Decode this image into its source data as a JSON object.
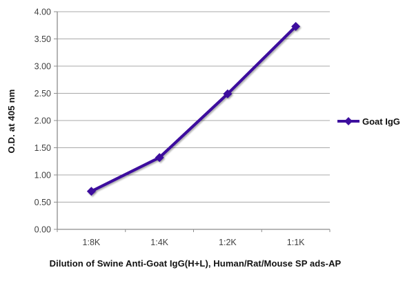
{
  "chart_data": {
    "type": "line",
    "categories": [
      "1:8K",
      "1:4K",
      "1:2K",
      "1:1K"
    ],
    "series": [
      {
        "name": "Goat IgG",
        "color": "#3D0F9E",
        "values": [
          0.7,
          1.32,
          2.49,
          3.73
        ]
      }
    ],
    "title": "",
    "xlabel": "Dilution of Swine Anti-Goat IgG(H+L), Human/Rat/Mouse SP ads-AP",
    "ylabel": "O.D. at 405 nm",
    "ylim": [
      0.0,
      4.0
    ],
    "ytick_step": 0.5,
    "ytick_labels": [
      "0.00",
      "0.50",
      "1.00",
      "1.50",
      "2.00",
      "2.50",
      "3.00",
      "3.50",
      "4.00"
    ],
    "grid": true,
    "legend_position": "right",
    "marker": "diamond",
    "colors": {
      "background": "#FFFFFF",
      "gridline": "#A8A8A8",
      "axis": "#8C8C8C",
      "tick_label": "#3F3F3F",
      "series_line": "#3D0F9E"
    }
  },
  "legend": {
    "label": "Goat IgG"
  }
}
